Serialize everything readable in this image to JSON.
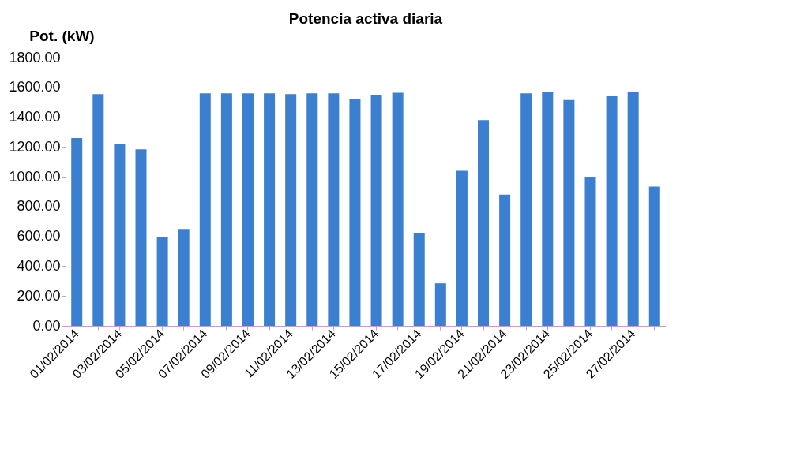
{
  "chart_data": {
    "type": "bar",
    "title": "Potencia  activa diaria",
    "ylabel": "Pot. (kW)",
    "categories": [
      "01/02/2014",
      null,
      "03/02/2014",
      null,
      "05/02/2014",
      null,
      "07/02/2014",
      null,
      "09/02/2014",
      null,
      "11/02/2014",
      null,
      "13/02/2014",
      null,
      "15/02/2014",
      null,
      "17/02/2014",
      null,
      "19/02/2014",
      null,
      "21/02/2014",
      null,
      "23/02/2014",
      null,
      "25/02/2014",
      null,
      "27/02/2014",
      null
    ],
    "values": [
      1260,
      1555,
      1220,
      1185,
      595,
      650,
      1560,
      1560,
      1560,
      1560,
      1555,
      1560,
      1560,
      1525,
      1550,
      1565,
      625,
      285,
      1040,
      1380,
      880,
      1560,
      1570,
      1515,
      1000,
      1540,
      1570,
      935
    ],
    "color": "#3b7fd0",
    "ylim": [
      0,
      1800
    ],
    "yticks": [
      {
        "value": 0,
        "label": "0.00"
      },
      {
        "value": 200,
        "label": "200.00"
      },
      {
        "value": 400,
        "label": "400.00"
      },
      {
        "value": 600,
        "label": "600.00"
      },
      {
        "value": 800,
        "label": "800.00"
      },
      {
        "value": 1000,
        "label": "1000.00"
      },
      {
        "value": 1200,
        "label": "1200.00"
      },
      {
        "value": 1400,
        "label": "1400.00"
      },
      {
        "value": 1600,
        "label": "1600.00"
      },
      {
        "value": 1800,
        "label": "1800.00"
      }
    ],
    "grid": false
  }
}
